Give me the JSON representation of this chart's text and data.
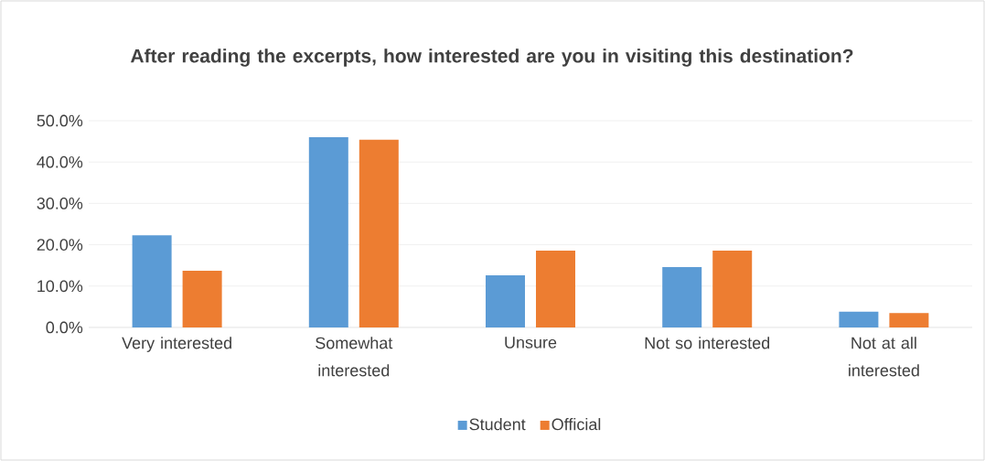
{
  "chart_data": {
    "type": "bar",
    "title": "After reading the excerpts, how interested are you in visiting this destination?",
    "categories": [
      "Very interested",
      "Somewhat interested",
      "Unsure",
      "Not so interested",
      "Not at all interested"
    ],
    "series": [
      {
        "name": "Student",
        "color": "#5b9bd5",
        "values": [
          22.3,
          46.0,
          12.6,
          14.6,
          3.8
        ]
      },
      {
        "name": "Official",
        "color": "#ed7d31",
        "values": [
          13.7,
          45.4,
          18.6,
          18.6,
          3.5
        ]
      }
    ],
    "ylim": [
      0,
      50
    ],
    "yticks": [
      {
        "value": 0,
        "label": "0.0%"
      },
      {
        "value": 10,
        "label": "10.0%"
      },
      {
        "value": 20,
        "label": "20.0%"
      },
      {
        "value": 30,
        "label": "30.0%"
      },
      {
        "value": 40,
        "label": "40.0%"
      },
      {
        "value": 50,
        "label": "50.0%"
      }
    ],
    "grid": "y",
    "legend": "bottom"
  }
}
